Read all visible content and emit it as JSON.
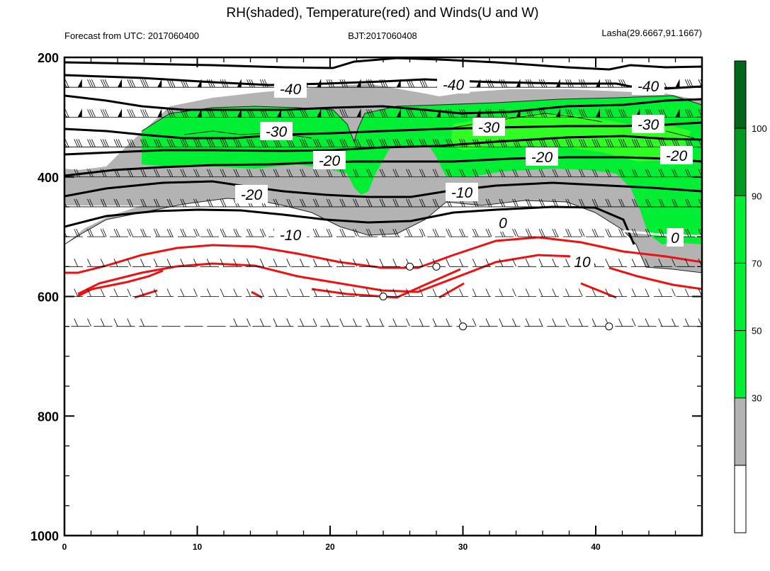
{
  "header": {
    "title": "RH(shaded), Temperature(red) and Winds(U and W)",
    "left": "Forecast from UTC: 2017060400",
    "center": "BJT:2017060408",
    "right": "Lasha(29.6667,91.1667)"
  },
  "chart_data": {
    "type": "contour",
    "title": "RH(shaded), Temperature(red) and Winds(U and W)",
    "xlim": [
      0,
      48
    ],
    "ylim": [
      200,
      1000
    ],
    "x_ticks": [
      0,
      10,
      20,
      30,
      40
    ],
    "y_ticks": [
      200,
      400,
      600,
      800,
      1000
    ],
    "rh_colorbar": {
      "levels": [
        30,
        50,
        70,
        90,
        100
      ],
      "colors": [
        "#ffffff",
        "#b3b3b3",
        "#00ee33",
        "#00ee33",
        "#00ee33",
        "#009922",
        "#00661a"
      ]
    },
    "temperature_labels": {
      "black": [
        "-40",
        "-40",
        "-40",
        "-30",
        "-30",
        "-30",
        "-20",
        "-20",
        "-20",
        "-20",
        "-10",
        "-10",
        "0",
        "0"
      ],
      "red": [
        "10"
      ]
    },
    "wind_levels_hpa": [
      250,
      300,
      350,
      400,
      450,
      500,
      550,
      600,
      650
    ],
    "calm_marker_points": [
      {
        "x": 26,
        "p": 550
      },
      {
        "x": 28,
        "p": 550
      },
      {
        "x": 24,
        "p": 600
      },
      {
        "x": 30,
        "p": 650
      },
      {
        "x": 41,
        "p": 650
      }
    ]
  },
  "colorbar_labels": [
    "100",
    "90",
    "70",
    "50",
    "30"
  ],
  "colors": {
    "gray": "#b3b3b3",
    "green": "#00ee33",
    "bright_green": "#22ff22",
    "red": "#ee1111",
    "black": "#000000"
  }
}
